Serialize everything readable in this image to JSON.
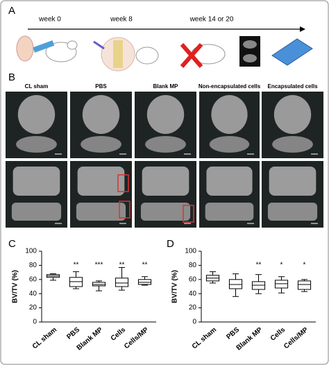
{
  "panel_a": {
    "label": "A",
    "timepoints": [
      "week 0",
      "week 8",
      "week 14 or 20"
    ]
  },
  "panel_b": {
    "label": "B",
    "columns": [
      "CL sham",
      "PBS",
      "Blank MP",
      "Non-encapsulated cells",
      "Encapsulated cells"
    ]
  },
  "chart_data": [
    {
      "type": "box",
      "panel_label": "C",
      "ylabel": "BV/TV (%)",
      "categories": [
        "CL sham",
        "PBS",
        "Blank MP",
        "Cells",
        "Cells/MP"
      ],
      "boxes": [
        {
          "min": 59,
          "q1": 63,
          "median": 65,
          "q3": 67,
          "max": 68
        },
        {
          "min": 47,
          "q1": 50,
          "median": 57,
          "q3": 63,
          "max": 71
        },
        {
          "min": 44,
          "q1": 51,
          "median": 53,
          "q3": 56,
          "max": 58
        },
        {
          "min": 45,
          "q1": 50,
          "median": 55,
          "q3": 62,
          "max": 77
        },
        {
          "min": 52,
          "q1": 53,
          "median": 56,
          "q3": 60,
          "max": 64
        }
      ],
      "annotations": [
        null,
        "**",
        "***",
        "**",
        "**"
      ],
      "ylim": [
        0,
        100
      ],
      "yticks": [
        0,
        20,
        40,
        60,
        80,
        100
      ]
    },
    {
      "type": "box",
      "panel_label": "D",
      "ylabel": "BV/TV (%)",
      "categories": [
        "CL sham",
        "PBS",
        "Blank MP",
        "Cells",
        "Cells/MP"
      ],
      "boxes": [
        {
          "min": 55,
          "q1": 58,
          "median": 62,
          "q3": 66,
          "max": 71
        },
        {
          "min": 36,
          "q1": 47,
          "median": 53,
          "q3": 60,
          "max": 68
        },
        {
          "min": 40,
          "q1": 46,
          "median": 52,
          "q3": 57,
          "max": 67
        },
        {
          "min": 41,
          "q1": 48,
          "median": 54,
          "q3": 59,
          "max": 64
        },
        {
          "min": 43,
          "q1": 46,
          "median": 53,
          "q3": 58,
          "max": 60
        }
      ],
      "annotations": [
        null,
        null,
        "**",
        "*",
        "*"
      ],
      "ylim": [
        0,
        100
      ],
      "yticks": [
        0,
        20,
        40,
        60,
        80,
        100
      ]
    }
  ]
}
